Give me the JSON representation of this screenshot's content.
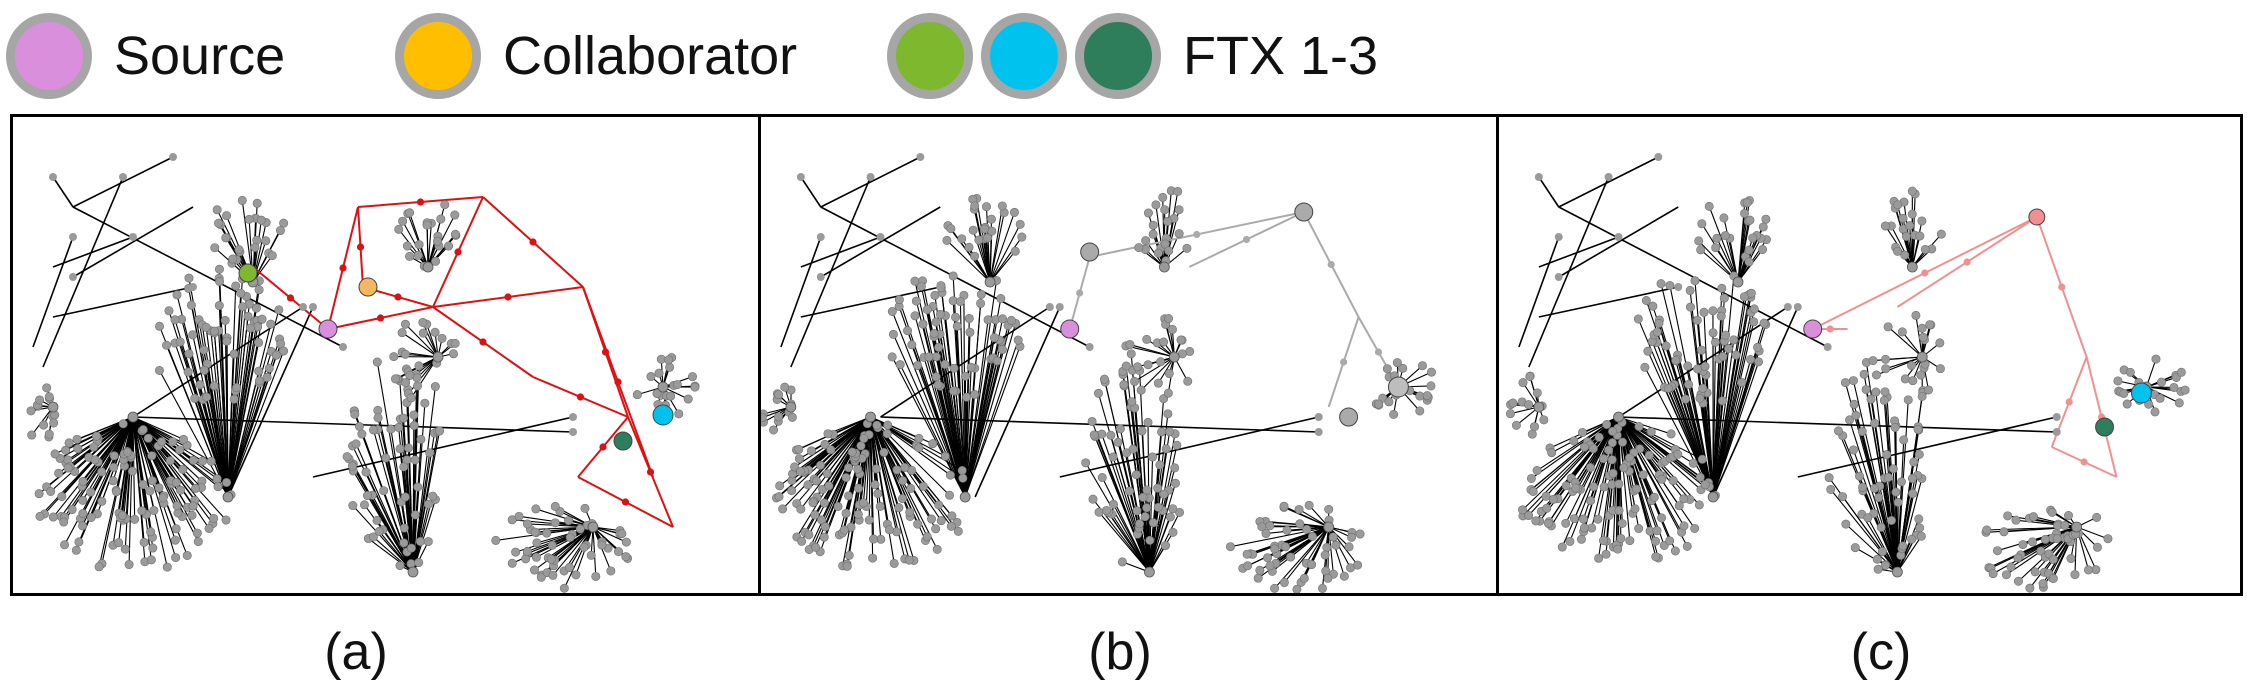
{
  "legend": {
    "items": [
      {
        "label": "Source",
        "colors": [
          "#d98fdb"
        ]
      },
      {
        "label": "Collaborator",
        "colors": [
          "#ffbf00"
        ]
      },
      {
        "label": "FTX 1-3",
        "colors": [
          "#7db82e",
          "#00c2ee",
          "#2e7d5b"
        ]
      }
    ]
  },
  "panels": [
    {
      "caption": "(a)",
      "path_color": "#dd1111"
    },
    {
      "caption": "(b)",
      "path_color": "#aaaaaa"
    },
    {
      "caption": "(c)",
      "path_color": "#f09090"
    }
  ],
  "colors": {
    "node": "#9a9a9a",
    "edge": "#000000"
  }
}
